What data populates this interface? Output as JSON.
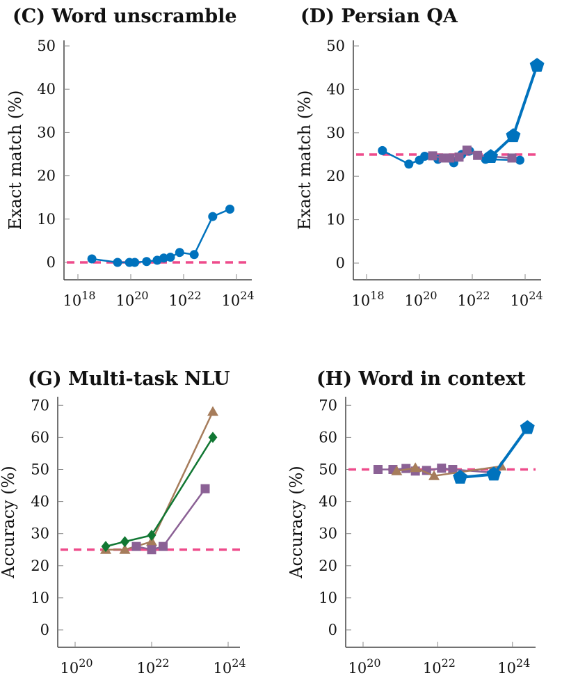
{
  "colors": {
    "circle": "#0072BD",
    "square": "#8B6195",
    "triangle": "#A67C5B",
    "diamond": "#117733",
    "pentagon": "#0072BD",
    "baseline": "#EE4B8B",
    "axis": "#444444"
  },
  "chart_data": [
    {
      "type": "line",
      "title": "(C) Word unscramble",
      "xlabel": "",
      "ylabel": "Exact match (%)",
      "xscale": "log",
      "xlim_log10": [
        17.8,
        24.6
      ],
      "ylim": [
        -4,
        52
      ],
      "xticks_log10": [
        18,
        20,
        22,
        24
      ],
      "xtick_labels": [
        "18",
        "20",
        "22",
        "24"
      ],
      "yticks": [
        0,
        10,
        20,
        30,
        40,
        50
      ],
      "ytick_labels": [
        "0",
        "10",
        "20",
        "30",
        "40",
        "50"
      ],
      "baseline": 0,
      "series": [
        {
          "name": "circle",
          "marker": "circle",
          "x_log10": [
            18.53,
            19.5,
            19.95,
            20.15,
            20.6,
            21.0,
            21.25,
            21.5,
            21.85,
            22.4,
            23.1,
            23.75
          ],
          "y": [
            0.8,
            0,
            0,
            0,
            0.2,
            0.5,
            1,
            1.2,
            2.3,
            1.8,
            10.6,
            12.3
          ]
        }
      ]
    },
    {
      "type": "line",
      "title": "(D) Persian QA",
      "xlabel": "",
      "ylabel": "Exact match (%)",
      "xscale": "log",
      "xlim_log10": [
        17.8,
        24.6
      ],
      "ylim": [
        -4,
        52
      ],
      "xticks_log10": [
        18,
        20,
        22,
        24
      ],
      "xtick_labels": [
        "18",
        "20",
        "22",
        "24"
      ],
      "yticks": [
        0,
        10,
        20,
        30,
        40,
        50
      ],
      "ytick_labels": [
        "0",
        "10",
        "20",
        "30",
        "40",
        "50"
      ],
      "baseline": 25,
      "series": [
        {
          "name": "circle",
          "marker": "circle",
          "x_log10": [
            18.6,
            19.6,
            20.0,
            20.2,
            20.7,
            21.3,
            21.6,
            21.9,
            22.5,
            23.8
          ],
          "y": [
            25.9,
            22.8,
            23.7,
            24.6,
            23.9,
            23.1,
            25,
            25.8,
            23.9,
            23.7
          ]
        },
        {
          "name": "square",
          "marker": "square",
          "x_log10": [
            20.5,
            20.9,
            21.15,
            21.5,
            21.8,
            22.2,
            23.5
          ],
          "y": [
            24.7,
            24.2,
            24.2,
            24.4,
            26,
            24.8,
            24.2
          ]
        },
        {
          "name": "pentagon",
          "marker": "pentagon",
          "x_log10": [
            22.7,
            23.55,
            24.45
          ],
          "y": [
            24.5,
            29.3,
            45.5
          ]
        }
      ]
    },
    {
      "type": "line",
      "title": "(G) Multi-task NLU",
      "xlabel": "",
      "ylabel": "Accuracy (%)",
      "xscale": "log",
      "xlim_log10": [
        19.6,
        24.5
      ],
      "ylim": [
        -3,
        72
      ],
      "xticks_log10": [
        20,
        22,
        24
      ],
      "xtick_labels": [
        "20",
        "22",
        "24"
      ],
      "yticks": [
        0,
        10,
        20,
        30,
        40,
        50,
        60,
        70
      ],
      "ytick_labels": [
        "0",
        "10",
        "20",
        "30",
        "40",
        "50",
        "60",
        "70"
      ],
      "baseline": 25,
      "series": [
        {
          "name": "triangle",
          "marker": "triangle",
          "x_log10": [
            20.8,
            21.3,
            22.0,
            23.6
          ],
          "y": [
            25,
            25,
            27.5,
            68
          ]
        },
        {
          "name": "square",
          "marker": "square",
          "x_log10": [
            21.6,
            22.0,
            22.3,
            23.4
          ],
          "y": [
            26,
            25,
            26,
            44
          ]
        },
        {
          "name": "diamond",
          "marker": "diamond",
          "x_log10": [
            20.8,
            21.3,
            22.0,
            23.6
          ],
          "y": [
            26,
            27.5,
            29.5,
            60
          ]
        }
      ]
    },
    {
      "type": "line",
      "title": "(H) Word in context",
      "xlabel": "",
      "ylabel": "Accuracy (%)",
      "xscale": "log",
      "xlim_log10": [
        19.6,
        24.5
      ],
      "ylim": [
        -3,
        72
      ],
      "xticks_log10": [
        20,
        22,
        24
      ],
      "xtick_labels": [
        "20",
        "22",
        "24"
      ],
      "yticks": [
        0,
        10,
        20,
        30,
        40,
        50,
        60,
        70
      ],
      "ytick_labels": [
        "0",
        "10",
        "20",
        "30",
        "40",
        "50",
        "60",
        "70"
      ],
      "baseline": 50,
      "series": [
        {
          "name": "square",
          "marker": "square",
          "x_log10": [
            20.4,
            20.8,
            21.15,
            21.4,
            21.7,
            22.1,
            22.4,
            23.5
          ],
          "y": [
            50,
            50,
            50.3,
            49.5,
            49.7,
            50.4,
            50,
            49
          ]
        },
        {
          "name": "triangle",
          "marker": "triangle",
          "x_log10": [
            20.9,
            21.4,
            21.9,
            23.7
          ],
          "y": [
            49.5,
            50.5,
            48,
            51
          ]
        },
        {
          "name": "pentagon",
          "marker": "pentagon",
          "x_log10": [
            22.6,
            23.5,
            24.4
          ],
          "y": [
            47.5,
            48.5,
            63
          ]
        }
      ]
    }
  ]
}
